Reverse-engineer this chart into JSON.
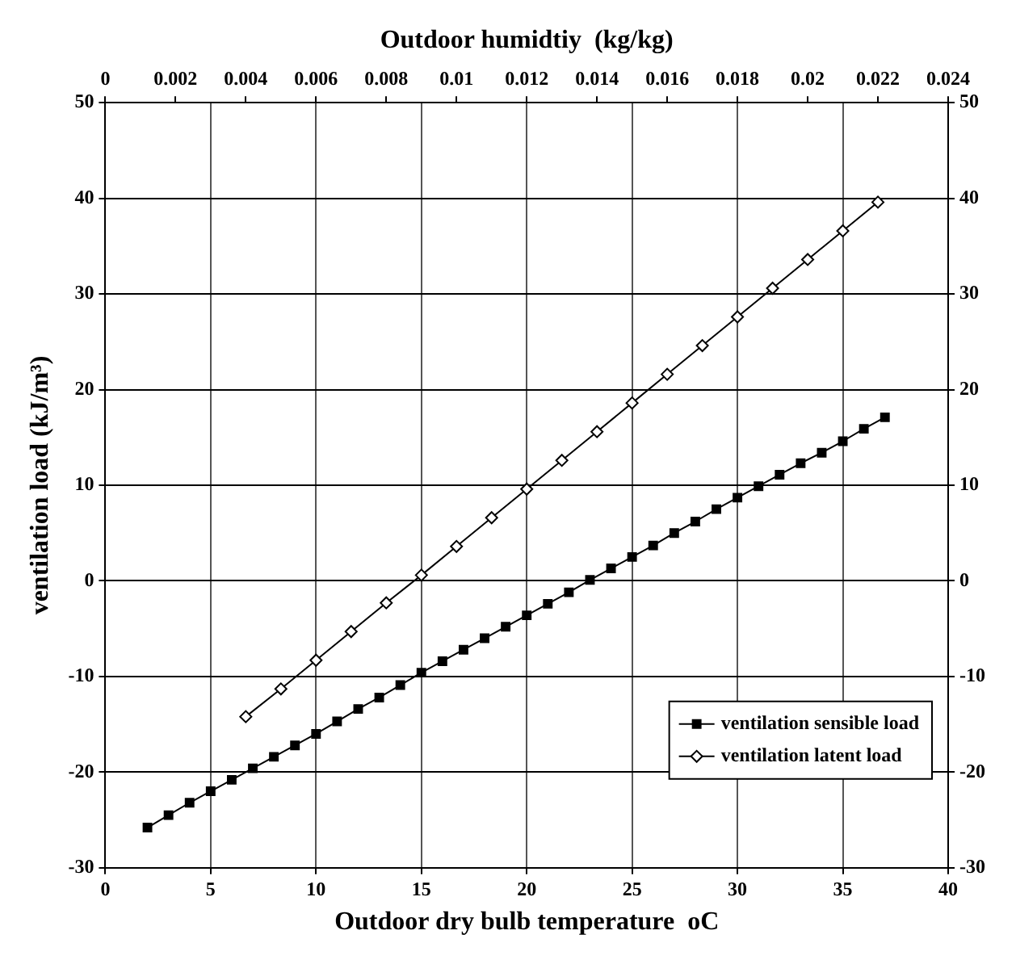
{
  "chart_data": {
    "type": "line",
    "xlabel": "Outdoor dry bulb temperature  oC",
    "x2label": "Outdoor humidtiy  (kg/kg)",
    "ylabel": "ventilation load (kJ/m³)",
    "xlim": [
      0,
      40
    ],
    "xticks": [
      0,
      5,
      10,
      15,
      20,
      25,
      30,
      35,
      40
    ],
    "x2lim": [
      0,
      0.024
    ],
    "x2ticks": [
      0,
      0.002,
      0.004,
      0.006,
      0.008,
      0.01,
      0.012,
      0.014,
      0.016,
      0.018,
      0.02,
      0.022,
      0.024
    ],
    "ylim": [
      -30,
      50
    ],
    "yticks": [
      -30,
      -20,
      -10,
      0,
      10,
      20,
      30,
      40,
      50
    ],
    "y2lim": [
      -30,
      50
    ],
    "y2ticks": [
      -30,
      -20,
      -10,
      0,
      10,
      20,
      30,
      40,
      50
    ],
    "grid": true,
    "legend": "bottom right",
    "series": [
      {
        "name": "ventilation sensible load",
        "color": "#000000",
        "marker": "square",
        "x": [
          2,
          3,
          4,
          5,
          6,
          7,
          8,
          9,
          10,
          11,
          12,
          13,
          14,
          15,
          16,
          17,
          18,
          19,
          20,
          21,
          22,
          23,
          24,
          25,
          26,
          27,
          28,
          29,
          30,
          31,
          32,
          33,
          34,
          35,
          36,
          37
        ],
        "values": [
          -25.8,
          -24.5,
          -23.2,
          -22.0,
          -20.8,
          -19.6,
          -18.4,
          -17.2,
          -16.0,
          -14.7,
          -13.4,
          -12.2,
          -10.9,
          -9.6,
          -8.4,
          -7.2,
          -6.0,
          -4.8,
          -3.6,
          -2.4,
          -1.2,
          0.1,
          1.3,
          2.5,
          3.7,
          5.0,
          6.2,
          7.5,
          8.7,
          9.9,
          11.1,
          12.3,
          13.4,
          14.6,
          15.9,
          17.1
        ]
      },
      {
        "name": "ventilation latent load",
        "color": "#000000",
        "marker": "diamond",
        "axis": "x2",
        "x": [
          0.004,
          0.005,
          0.006,
          0.007,
          0.008,
          0.009,
          0.01,
          0.011,
          0.012,
          0.013,
          0.014,
          0.015,
          0.016,
          0.017,
          0.018,
          0.019,
          0.02,
          0.021,
          0.022
        ],
        "values": [
          -14.2,
          -11.3,
          -8.3,
          -5.3,
          -2.3,
          0.6,
          3.6,
          6.6,
          9.6,
          12.6,
          15.6,
          18.6,
          21.6,
          24.6,
          27.6,
          30.6,
          33.6,
          36.6,
          39.6
        ]
      }
    ]
  }
}
